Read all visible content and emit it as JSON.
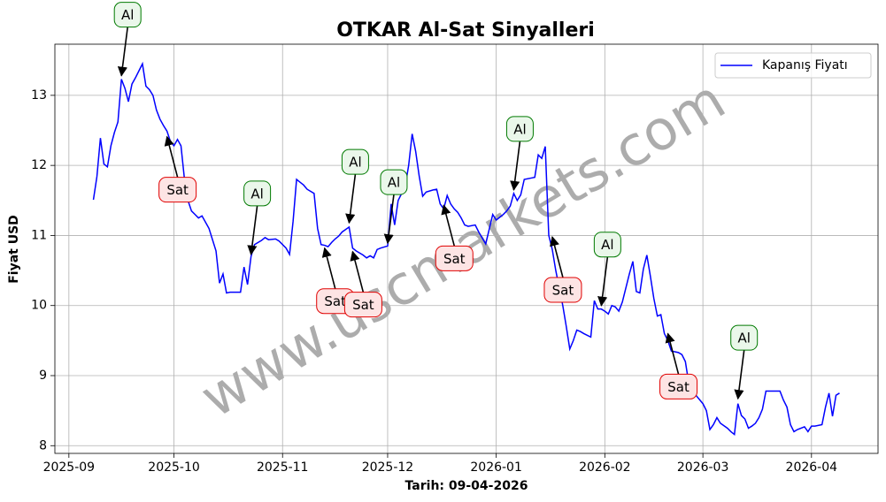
{
  "chart_data": {
    "type": "line",
    "title": "OTKAR Al-Sat Sinyalleri",
    "xlabel": "Tarih: 09-04-2026",
    "ylabel": "Fiyat USD",
    "watermark": "www.uscmarkets.com",
    "grid": true,
    "legend": "upper right",
    "xlim": [
      "2025-08-28",
      "2026-04-20"
    ],
    "ylim": [
      7.89,
      13.73
    ],
    "xticks": [
      "2025-09",
      "2025-10",
      "2025-11",
      "2025-12",
      "2026-01",
      "2026-02",
      "2026-03",
      "2026-04"
    ],
    "yticks": [
      8,
      9,
      10,
      11,
      12,
      13
    ],
    "x": [
      "2025-09-08",
      "2025-09-09",
      "2025-09-10",
      "2025-09-11",
      "2025-09-12",
      "2025-09-13",
      "2025-09-14",
      "2025-09-15",
      "2025-09-16",
      "2025-09-17",
      "2025-09-18",
      "2025-09-19",
      "2025-09-20",
      "2025-09-21",
      "2025-09-22",
      "2025-09-23",
      "2025-09-24",
      "2025-09-25",
      "2025-09-26",
      "2025-09-27",
      "2025-09-28",
      "2025-09-29",
      "2025-09-30",
      "2025-10-01",
      "2025-10-02",
      "2025-10-03",
      "2025-10-04",
      "2025-10-05",
      "2025-10-06",
      "2025-10-07",
      "2025-10-08",
      "2025-10-09",
      "2025-10-11",
      "2025-10-13",
      "2025-10-14",
      "2025-10-15",
      "2025-10-16",
      "2025-10-17",
      "2025-10-20",
      "2025-10-21",
      "2025-10-22",
      "2025-10-23",
      "2025-10-24",
      "2025-10-26",
      "2025-10-27",
      "2025-10-28",
      "2025-10-30",
      "2025-10-31",
      "2025-11-02",
      "2025-11-03",
      "2025-11-04",
      "2025-11-05",
      "2025-11-06",
      "2025-11-07",
      "2025-11-08",
      "2025-11-10",
      "2025-11-11",
      "2025-11-12",
      "2025-11-13",
      "2025-11-14",
      "2025-11-15",
      "2025-11-16",
      "2025-11-17",
      "2025-11-18",
      "2025-11-20",
      "2025-11-21",
      "2025-11-22",
      "2025-11-24",
      "2025-11-25",
      "2025-11-26",
      "2025-11-27",
      "2025-11-28",
      "2025-11-29",
      "2025-12-01",
      "2025-12-02",
      "2025-12-03",
      "2025-12-04",
      "2025-12-05",
      "2025-12-06",
      "2025-12-07",
      "2025-12-08",
      "2025-12-09",
      "2025-12-10",
      "2025-12-11",
      "2025-12-12",
      "2025-12-14",
      "2025-12-15",
      "2025-12-16",
      "2025-12-17",
      "2025-12-18",
      "2025-12-19",
      "2025-12-20",
      "2025-12-21",
      "2025-12-22",
      "2025-12-23",
      "2025-12-24",
      "2025-12-26",
      "2025-12-27",
      "2025-12-29",
      "2025-12-31",
      "2026-01-01",
      "2026-01-03",
      "2026-01-04",
      "2026-01-05",
      "2026-01-06",
      "2026-01-07",
      "2026-01-08",
      "2026-01-09",
      "2026-01-11",
      "2026-01-12",
      "2026-01-13",
      "2026-01-14",
      "2026-01-15",
      "2026-01-16",
      "2026-01-17",
      "2026-01-18",
      "2026-01-20",
      "2026-01-21",
      "2026-01-22",
      "2026-01-23",
      "2026-01-24",
      "2026-01-25",
      "2026-01-26",
      "2026-01-28",
      "2026-01-29",
      "2026-01-30",
      "2026-01-31",
      "2026-02-01",
      "2026-02-02",
      "2026-02-03",
      "2026-02-04",
      "2026-02-05",
      "2026-02-06",
      "2026-02-07",
      "2026-02-08",
      "2026-02-09",
      "2026-02-10",
      "2026-02-11",
      "2026-02-12",
      "2026-02-13",
      "2026-02-14",
      "2026-02-15",
      "2026-02-16",
      "2026-02-17",
      "2026-02-18",
      "2026-02-19",
      "2026-02-20",
      "2026-02-22",
      "2026-02-23",
      "2026-02-24",
      "2026-02-25",
      "2026-02-26",
      "2026-02-27",
      "2026-03-01",
      "2026-03-02",
      "2026-03-03",
      "2026-03-04",
      "2026-03-05",
      "2026-03-06",
      "2026-03-08",
      "2026-03-09",
      "2026-03-10",
      "2026-03-11",
      "2026-03-12",
      "2026-03-13",
      "2026-03-14",
      "2026-03-15",
      "2026-03-16",
      "2026-03-17",
      "2026-03-18",
      "2026-03-19",
      "2026-03-21",
      "2026-03-23",
      "2026-03-24",
      "2026-03-25",
      "2026-03-26",
      "2026-03-27",
      "2026-03-28",
      "2026-03-30",
      "2026-03-31",
      "2026-04-01",
      "2026-04-02",
      "2026-04-04",
      "2026-04-05",
      "2026-04-06",
      "2026-04-07",
      "2026-04-08",
      "2026-04-09"
    ],
    "series": [
      {
        "name": "Kapanış Fiyatı",
        "color": "#0000ff",
        "values": [
          11.51,
          11.84,
          12.39,
          12.02,
          11.98,
          12.28,
          12.47,
          12.62,
          13.23,
          13.1,
          12.91,
          13.16,
          13.25,
          13.35,
          13.45,
          13.13,
          13.08,
          13.0,
          12.79,
          12.66,
          12.57,
          12.49,
          12.34,
          12.28,
          12.37,
          12.28,
          11.8,
          11.5,
          11.35,
          11.3,
          11.25,
          11.28,
          11.1,
          10.78,
          10.32,
          10.45,
          10.18,
          10.19,
          10.19,
          10.55,
          10.3,
          10.7,
          10.87,
          10.93,
          10.97,
          10.94,
          10.95,
          10.92,
          10.82,
          10.73,
          11.2,
          11.8,
          11.76,
          11.72,
          11.66,
          11.6,
          11.1,
          10.87,
          10.86,
          10.84,
          10.9,
          10.95,
          10.99,
          11.05,
          11.12,
          10.82,
          10.78,
          10.72,
          10.68,
          10.71,
          10.68,
          10.8,
          10.82,
          10.85,
          11.45,
          11.15,
          11.5,
          11.6,
          11.7,
          12.0,
          12.45,
          12.2,
          11.85,
          11.56,
          11.62,
          11.65,
          11.66,
          11.45,
          11.38,
          11.57,
          11.45,
          11.38,
          11.33,
          11.25,
          11.15,
          11.13,
          11.15,
          11.05,
          10.88,
          11.3,
          11.22,
          11.3,
          11.35,
          11.42,
          11.6,
          11.5,
          11.58,
          11.8,
          11.82,
          11.83,
          12.15,
          12.1,
          12.27,
          11.0,
          10.8,
          10.5,
          10.0,
          9.7,
          9.38,
          9.5,
          9.65,
          9.63,
          9.6,
          9.55,
          10.07,
          9.95,
          9.95,
          9.92,
          9.88,
          10.0,
          9.98,
          9.92,
          10.05,
          10.25,
          10.45,
          10.63,
          10.2,
          10.18,
          10.52,
          10.72,
          10.42,
          10.1,
          9.85,
          9.87,
          9.6,
          9.5,
          9.35,
          9.33,
          9.3,
          9.2,
          8.88,
          8.8,
          8.72,
          8.6,
          8.5,
          8.23,
          8.3,
          8.4,
          8.32,
          8.25,
          8.2,
          8.16,
          8.6,
          8.43,
          8.38,
          8.25,
          8.28,
          8.32,
          8.4,
          8.52,
          8.78,
          8.78,
          8.78,
          8.65,
          8.55,
          8.3,
          8.2,
          8.23,
          8.27,
          8.2,
          8.28,
          8.28,
          8.3,
          8.55,
          8.75,
          8.42,
          8.72,
          8.75
        ]
      }
    ],
    "annotations": [
      {
        "text": "Al",
        "x": "2025-09-16",
        "y": 13.28
      },
      {
        "text": "Sat",
        "x": "2025-09-29",
        "y": 12.41
      },
      {
        "text": "Al",
        "x": "2025-10-23",
        "y": 10.73
      },
      {
        "text": "Sat",
        "x": "2025-11-13",
        "y": 10.82
      },
      {
        "text": "Al",
        "x": "2025-11-20",
        "y": 11.18
      },
      {
        "text": "Sat",
        "x": "2025-11-21",
        "y": 10.77
      },
      {
        "text": "Al",
        "x": "2025-12-01",
        "y": 10.89
      },
      {
        "text": "Sat",
        "x": "2025-12-17",
        "y": 11.43
      },
      {
        "text": "Al",
        "x": "2026-01-06",
        "y": 11.65
      },
      {
        "text": "Sat",
        "x": "2026-01-17",
        "y": 10.98
      },
      {
        "text": "Al",
        "x": "2026-01-31",
        "y": 10.0
      },
      {
        "text": "Sat",
        "x": "2026-02-19",
        "y": 9.6
      },
      {
        "text": "Al",
        "x": "2026-03-11",
        "y": 8.67
      }
    ]
  }
}
